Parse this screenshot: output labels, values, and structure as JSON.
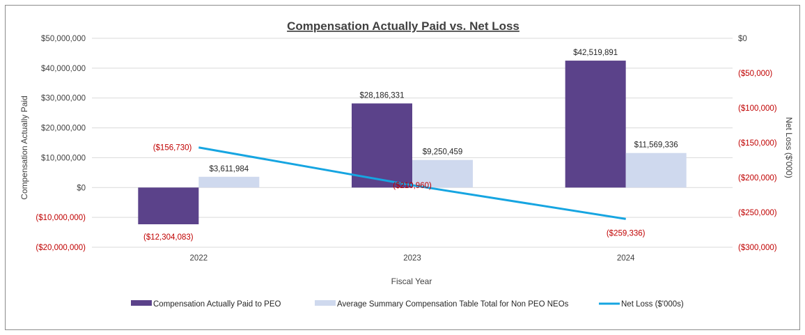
{
  "chart_data": {
    "type": "bar",
    "title": "Compensation Actually Paid vs. Net Loss",
    "xlabel": "Fiscal Year",
    "ylabel": "Compensation Actually Paid",
    "y2label": "Net Loss ($'000)",
    "categories": [
      "2022",
      "2023",
      "2024"
    ],
    "ylim": [
      -20000000,
      50000000
    ],
    "yticks": [
      {
        "value": 50000000,
        "label": "$50,000,000"
      },
      {
        "value": 40000000,
        "label": "$40,000,000"
      },
      {
        "value": 30000000,
        "label": "$30,000,000"
      },
      {
        "value": 20000000,
        "label": "$20,000,000"
      },
      {
        "value": 10000000,
        "label": "$10,000,000"
      },
      {
        "value": 0,
        "label": "$0"
      },
      {
        "value": -10000000,
        "label": "($10,000,000)"
      },
      {
        "value": -20000000,
        "label": "($20,000,000)"
      }
    ],
    "y2lim": [
      -300000,
      0
    ],
    "y2ticks": [
      {
        "value": 0,
        "label": "$0"
      },
      {
        "value": -50000,
        "label": "($50,000)"
      },
      {
        "value": -100000,
        "label": "($100,000)"
      },
      {
        "value": -150000,
        "label": "($150,000)"
      },
      {
        "value": -200000,
        "label": "($200,000)"
      },
      {
        "value": -250000,
        "label": "($250,000)"
      },
      {
        "value": -300000,
        "label": "($300,000)"
      }
    ],
    "series": [
      {
        "name": "Compensation Actually Paid to PEO",
        "type": "bar",
        "axis": "left",
        "color": "#5b428a",
        "values": [
          -12304083,
          28186331,
          42519891
        ],
        "labels": [
          "($12,304,083)",
          "$28,186,331",
          "$42,519,891"
        ]
      },
      {
        "name": "Average Summary Compensation Table Total for Non PEO NEOs",
        "type": "bar",
        "axis": "left",
        "color": "#cfd9ee",
        "values": [
          3611984,
          9250459,
          11569336
        ],
        "labels": [
          "$3,611,984",
          "$9,250,459",
          "$11,569,336"
        ]
      },
      {
        "name": "Net Loss  ($'000s)",
        "type": "line",
        "axis": "right",
        "color": "#16a5e1",
        "values": [
          -156730,
          -210960,
          -259336
        ],
        "labels": [
          "($156,730)",
          "($210,960)",
          "($259,336)"
        ]
      }
    ],
    "grid": true,
    "legend": "bottom"
  }
}
